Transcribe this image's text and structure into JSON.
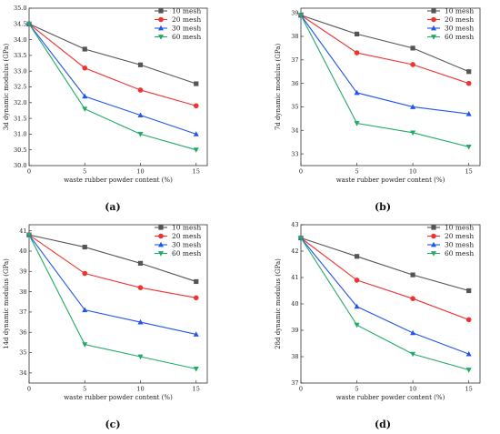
{
  "chart_data": [
    {
      "type": "line",
      "caption": "(a)",
      "x": [
        0,
        5,
        10,
        15
      ],
      "xlabel": "waste rubber powder content (%)",
      "ylabel": "3d dynamic modulus (GPa)",
      "xlim": [
        0,
        16
      ],
      "ylim": [
        30.0,
        35.0
      ],
      "yticks": [
        "30.0",
        "30.5",
        "31.0",
        "31.5",
        "32.0",
        "32.5",
        "33.0",
        "33.5",
        "34.0",
        "34.5",
        "35.0"
      ],
      "xticks": [
        "0",
        "5",
        "10",
        "15"
      ],
      "legend_position": "top-right",
      "series": [
        {
          "name": "10 mesh",
          "values": [
            34.5,
            33.7,
            33.2,
            32.6
          ]
        },
        {
          "name": "20 mesh",
          "values": [
            34.5,
            33.1,
            32.4,
            31.9
          ]
        },
        {
          "name": "30 mesh",
          "values": [
            34.5,
            32.2,
            31.6,
            31.0
          ]
        },
        {
          "name": "60 mesh",
          "values": [
            34.5,
            31.8,
            31.0,
            30.5
          ]
        }
      ]
    },
    {
      "type": "line",
      "caption": "(b)",
      "x": [
        0,
        5,
        10,
        15
      ],
      "xlabel": "waste rubber powder content (%)",
      "ylabel": "7d dynamic modulus (GPa)",
      "xlim": [
        0,
        16
      ],
      "ylim": [
        32.5,
        39.2
      ],
      "yticks": [
        "33",
        "34",
        "35",
        "36",
        "37",
        "38",
        "39"
      ],
      "xticks": [
        "0",
        "5",
        "10",
        "15"
      ],
      "legend_position": "top-right",
      "series": [
        {
          "name": "10 mesh",
          "values": [
            38.9,
            38.1,
            37.5,
            36.5
          ]
        },
        {
          "name": "20 mesh",
          "values": [
            38.9,
            37.3,
            36.8,
            36.0
          ]
        },
        {
          "name": "30 mesh",
          "values": [
            38.9,
            35.6,
            35.0,
            34.7
          ]
        },
        {
          "name": "60 mesh",
          "values": [
            38.9,
            34.3,
            33.9,
            33.3
          ]
        }
      ]
    },
    {
      "type": "line",
      "caption": "(c)",
      "x": [
        0,
        5,
        10,
        15
      ],
      "xlabel": "waste rubber powder content (%)",
      "ylabel": "14d dynamic modulus (GPa)",
      "xlim": [
        0,
        16
      ],
      "ylim": [
        33.5,
        41.3
      ],
      "yticks": [
        "34",
        "35",
        "36",
        "37",
        "38",
        "39",
        "40",
        "41"
      ],
      "xticks": [
        "0",
        "5",
        "10",
        "15"
      ],
      "legend_position": "top-right",
      "series": [
        {
          "name": "10 mesh",
          "values": [
            40.8,
            40.2,
            39.4,
            38.5
          ]
        },
        {
          "name": "20 mesh",
          "values": [
            40.8,
            38.9,
            38.2,
            37.7
          ]
        },
        {
          "name": "30 mesh",
          "values": [
            40.8,
            37.1,
            36.5,
            35.9
          ]
        },
        {
          "name": "60 mesh",
          "values": [
            40.8,
            35.4,
            34.8,
            34.2
          ]
        }
      ]
    },
    {
      "type": "line",
      "caption": "(d)",
      "x": [
        0,
        5,
        10,
        15
      ],
      "xlabel": "waste rubber powder content (%)",
      "ylabel": "28d dynamic modulus (GPa)",
      "xlim": [
        0,
        16
      ],
      "ylim": [
        37.0,
        43.0
      ],
      "yticks": [
        "37",
        "38",
        "39",
        "40",
        "41",
        "42",
        "43"
      ],
      "xticks": [
        "0",
        "5",
        "10",
        "15"
      ],
      "legend_position": "top-right",
      "series": [
        {
          "name": "10 mesh",
          "values": [
            42.5,
            41.8,
            41.1,
            40.5
          ]
        },
        {
          "name": "20 mesh",
          "values": [
            42.5,
            40.9,
            40.2,
            39.4
          ]
        },
        {
          "name": "30 mesh",
          "values": [
            42.5,
            39.9,
            38.9,
            38.1
          ]
        },
        {
          "name": "60 mesh",
          "values": [
            42.5,
            39.2,
            38.1,
            37.5
          ]
        }
      ]
    }
  ],
  "series_colors": [
    "#555555",
    "#ee3333",
    "#2255ee",
    "#22aa66"
  ],
  "series_markers": [
    "square",
    "circle",
    "triangle-up",
    "triangle-down"
  ]
}
